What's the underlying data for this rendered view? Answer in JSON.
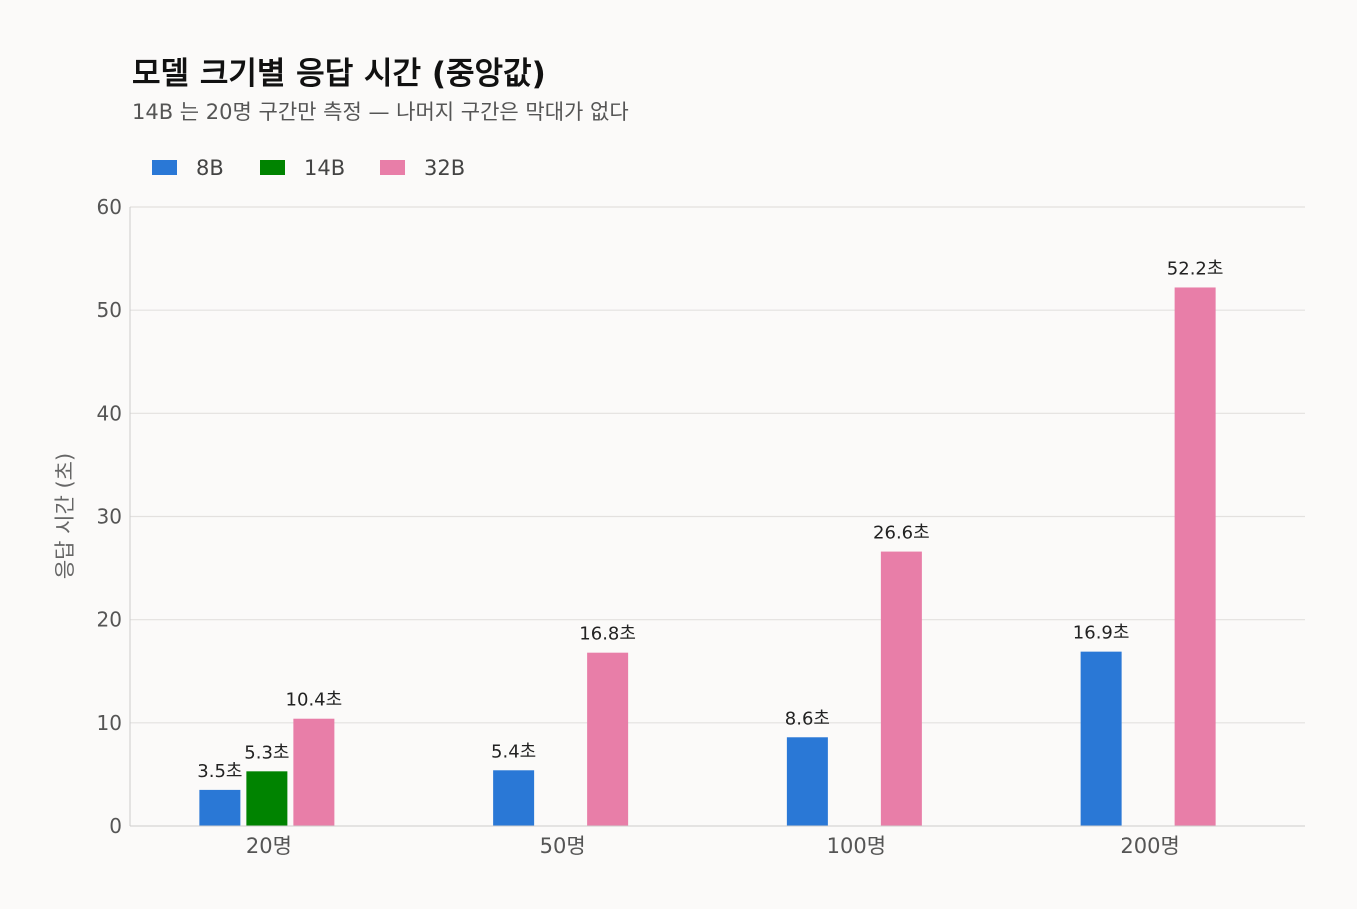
{
  "chart_data": {
    "type": "bar",
    "title": "모델 크기별 응답 시간 (중앙값)",
    "subtitle": "14B 는 20명 구간만 측정 — 나머지 구간은 막대가 없다",
    "xlabel": "",
    "ylabel": "응답 시간 (초)",
    "ylim": [
      0,
      60
    ],
    "yticks": [
      0,
      10,
      20,
      30,
      40,
      50,
      60
    ],
    "grid": true,
    "legend_position": "top-left",
    "categories": [
      "20명",
      "50명",
      "100명",
      "200명"
    ],
    "series": [
      {
        "name": "8B",
        "color": "#2a78d6",
        "values": [
          3.5,
          5.4,
          8.6,
          16.9
        ],
        "labels": [
          "3.5초",
          "5.4초",
          "8.6초",
          "16.9초"
        ]
      },
      {
        "name": "14B",
        "color": "#008300",
        "values": [
          5.3,
          null,
          null,
          null
        ],
        "labels": [
          "5.3초",
          null,
          null,
          null
        ]
      },
      {
        "name": "32B",
        "color": "#e87ea8",
        "values": [
          10.4,
          16.8,
          26.6,
          52.2
        ],
        "labels": [
          "10.4초",
          "16.8초",
          "26.6초",
          "52.2초"
        ]
      }
    ]
  }
}
